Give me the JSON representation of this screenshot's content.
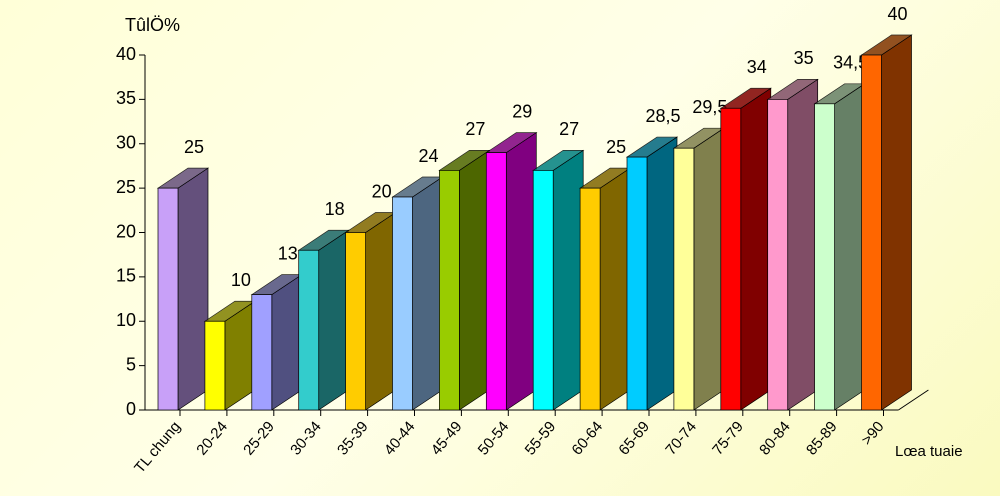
{
  "chart_data": {
    "type": "bar3d",
    "y_label": "TûlÖ%",
    "x_label": "Lœa tuaie",
    "categories": [
      "TL chung",
      "20-24",
      "25-29",
      "30-34",
      "35-39",
      "40-44",
      "45-49",
      "50-54",
      "55-59",
      "60-64",
      "65-69",
      "70-74",
      "75-79",
      "80-84",
      "85-89",
      ">90"
    ],
    "values": [
      25,
      10,
      13,
      18,
      20,
      24,
      27,
      29,
      27,
      25,
      28.5,
      29.5,
      34,
      35,
      34.5,
      40
    ],
    "value_labels": [
      "25",
      "10",
      "13",
      "18",
      "20",
      "24",
      "27",
      "29",
      "27",
      "25",
      "28,5",
      "29,5",
      "34",
      "35",
      "34,5",
      "40"
    ],
    "colors": [
      "#c8a0f8",
      "#ffff00",
      "#a0a0ff",
      "#33cccc",
      "#ffcc00",
      "#99ccff",
      "#99cc00",
      "#ff00ff",
      "#00ffff",
      "#ffcc00",
      "#00ccff",
      "#ffff99",
      "#ff0000",
      "#ff99cc",
      "#ccffcc",
      "#ff6600"
    ],
    "ylim": [
      0,
      40
    ],
    "yticks": [
      0,
      5,
      10,
      15,
      20,
      25,
      30,
      35,
      40
    ]
  }
}
